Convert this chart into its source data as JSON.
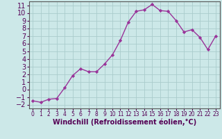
{
  "x": [
    0,
    1,
    2,
    3,
    4,
    5,
    6,
    7,
    8,
    9,
    10,
    11,
    12,
    13,
    14,
    15,
    16,
    17,
    18,
    19,
    20,
    21,
    22,
    23
  ],
  "y": [
    -1.5,
    -1.7,
    -1.3,
    -1.2,
    0.2,
    1.8,
    2.7,
    2.3,
    2.3,
    3.3,
    4.5,
    6.4,
    8.8,
    10.2,
    10.4,
    11.1,
    10.3,
    10.2,
    9.0,
    7.5,
    7.8,
    6.8,
    5.2,
    7.0
  ],
  "line_color": "#993399",
  "marker": "D",
  "marker_size": 2.2,
  "bg_color": "#cce8e8",
  "grid_color": "#aacccc",
  "xlabel": "Windchill (Refroidissement éolien,°C)",
  "xlabel_fontsize": 7,
  "xlim": [
    -0.5,
    23.5
  ],
  "ylim": [
    -2.5,
    11.5
  ],
  "yticks": [
    -2,
    -1,
    0,
    1,
    2,
    3,
    4,
    5,
    6,
    7,
    8,
    9,
    10,
    11
  ],
  "xticks": [
    0,
    1,
    2,
    3,
    4,
    5,
    6,
    7,
    8,
    9,
    10,
    11,
    12,
    13,
    14,
    15,
    16,
    17,
    18,
    19,
    20,
    21,
    22,
    23
  ],
  "ytick_fontsize": 7,
  "xtick_fontsize": 5.5,
  "line_width": 1.0,
  "spine_color": "#555555"
}
